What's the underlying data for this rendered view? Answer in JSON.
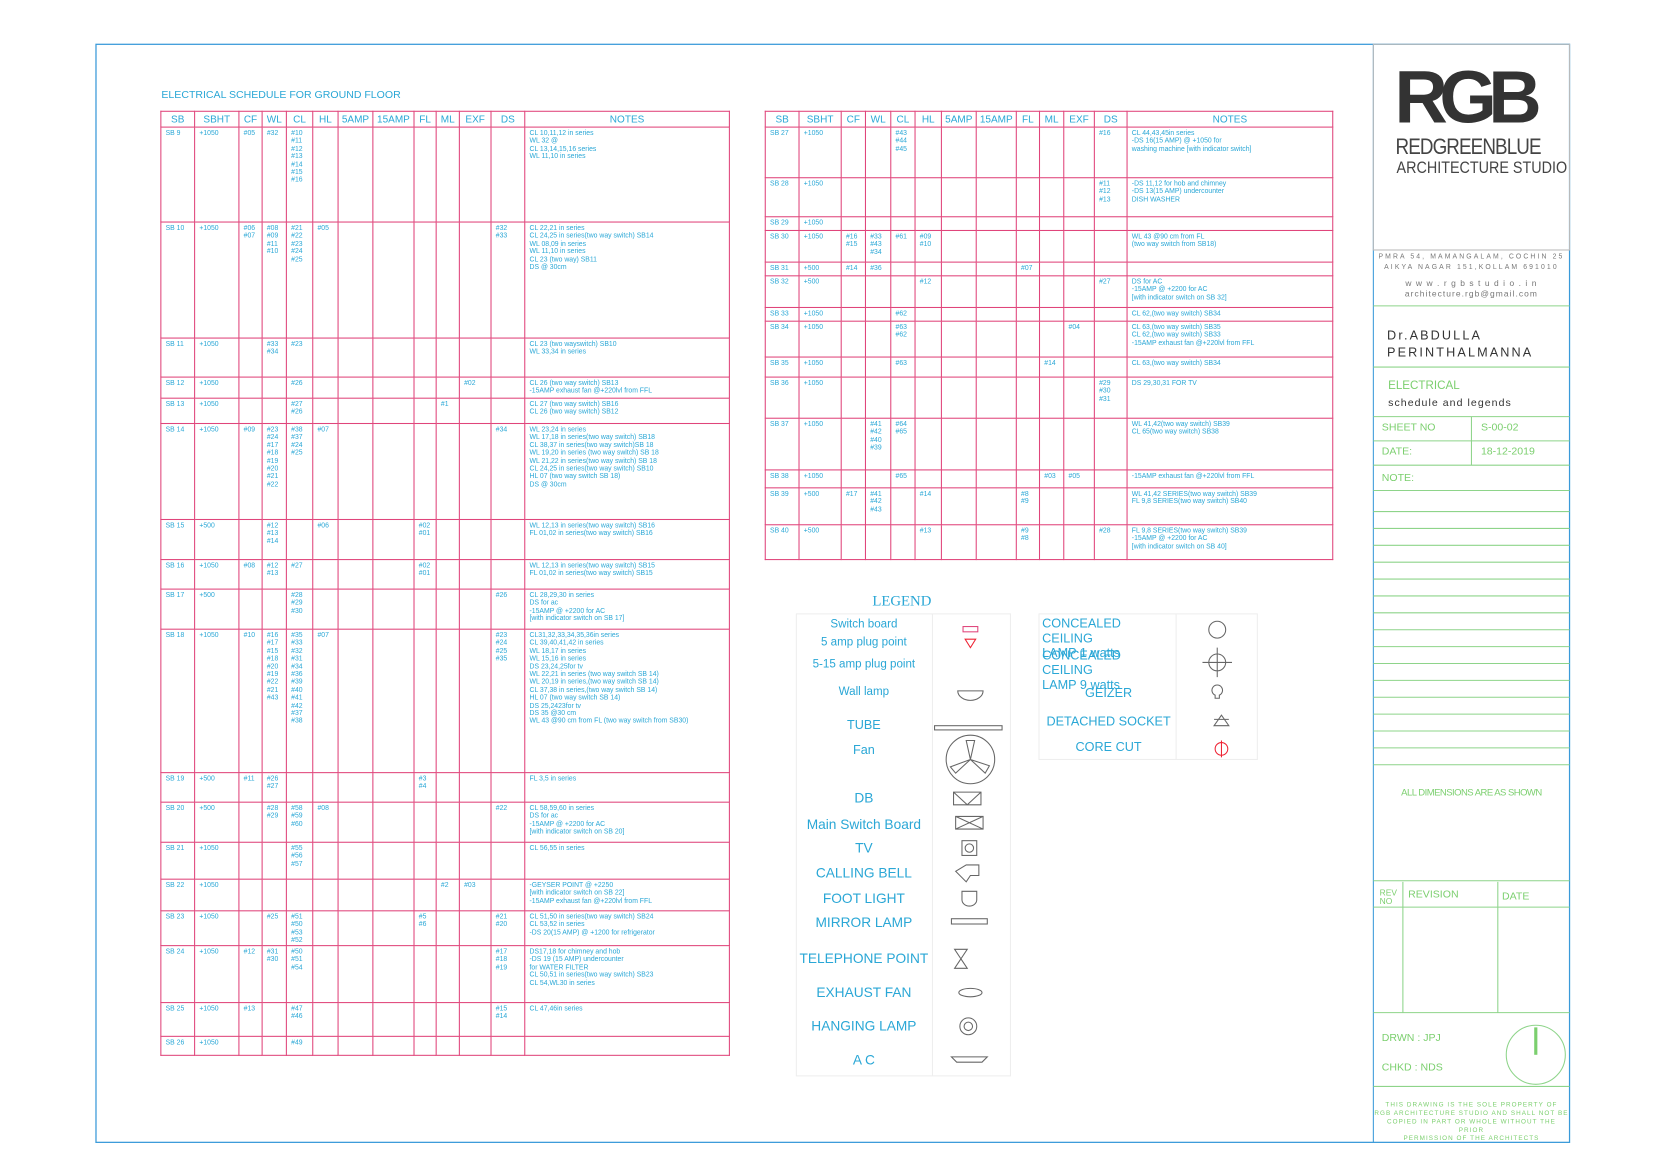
{
  "schedule_ground": {
    "title": "ELECTRICAL SCHEDULE FOR GROUND FLOOR",
    "columns": [
      "SB",
      "SBHT",
      "CF",
      "WL",
      "CL",
      "HL",
      "5AMP",
      "15AMP",
      "FL",
      "ML",
      "EXF",
      "DS",
      "NOTES"
    ],
    "rows": [
      [
        "SB 9",
        "+1050",
        "#05",
        "#32",
        "#10\n#11\n#12\n#13\n#14\n#15\n#16",
        null,
        null,
        null,
        null,
        null,
        null,
        null,
        "CL 10,11,12 in series\nWL 32 @\nCL 13,14,15,16 series\nWL 11,10 in series"
      ],
      [
        "SB 10",
        "+1050",
        "#06\n#07",
        "#08\n#09\n#11\n#10",
        "#21\n#22\n#23\n#24\n#25",
        "#05",
        null,
        null,
        null,
        null,
        null,
        "#32\n#33",
        "CL 22,21 in series\nCL 24,25 in series(two way switch) SB14\nWL 08,09 in series\nWL 11,10 in series\nCL 23 (two way) SB11\nDS @ 30cm"
      ],
      [
        "SB 11",
        "+1050",
        null,
        "#33\n#34",
        "#23",
        null,
        null,
        null,
        null,
        null,
        null,
        null,
        "CL 23 (two wayswitch) SB10\nWL 33,34 in series"
      ],
      [
        "SB 12",
        "+1050",
        null,
        null,
        "#26",
        null,
        null,
        null,
        null,
        null,
        "#02",
        null,
        "CL 26 (two way switch) SB13\n-15AMP exhaust fan @+220lvl from FFL"
      ],
      [
        "SB 13",
        "+1050",
        null,
        null,
        "#27\n#26",
        null,
        null,
        null,
        null,
        "#1",
        null,
        null,
        "CL 27 (two way switch) SB16\nCL 26 (two way switch) SB12"
      ],
      [
        "SB 14",
        "+1050",
        "#09",
        "#23\n#24\n#17\n#18\n#19\n#20\n#21\n#22",
        "#38\n#37\n#24\n#25",
        "#07",
        null,
        null,
        null,
        null,
        null,
        "#34",
        "WL 23,24 in series\nWL 17,18 in series(two way switch) SB18\nCL 38,37 in series(two way switch)SB 18\nWL 19,20 in series (two way switch) SB 18\nWL 21,22 in series(two way switch) SB 18\nCL 24,25 in series(two way switch) SB10\nHL 07 (two way switch SB 18)\nDS @ 30cm"
      ],
      [
        "SB 15",
        "+500",
        null,
        "#12\n#13\n#14",
        null,
        "#06",
        null,
        null,
        "#02\n#01",
        null,
        null,
        null,
        "WL 12,13 in series(two way switch) SB16\nFL 01,02 in series(two way switch) SB16"
      ],
      [
        "SB 16",
        "+1050",
        "#08",
        "#12\n#13",
        "#27",
        null,
        null,
        null,
        "#02\n#01",
        null,
        null,
        null,
        "WL 12,13 in series(two way switch) SB15\nFL 01,02 in series(two way switch) SB15"
      ],
      [
        "SB 17",
        "+500",
        null,
        null,
        "#28\n#29\n#30",
        null,
        null,
        null,
        null,
        null,
        null,
        "#26",
        "CL 28,29,30 in series\nDS for ac\n-15AMP @ +2200 for AC\n[with indicator switch on SB 17]"
      ],
      [
        "SB 18",
        "+1050",
        "#10",
        "#16\n#17\n#15\n#18\n#20\n#19\n#22\n#21\n#43",
        "#35\n#33\n#32\n#31\n#34\n#36\n#39\n#40\n#41\n#42\n#37\n#38",
        "#07",
        null,
        null,
        null,
        null,
        null,
        "#23\n#24\n#25\n#35",
        "CL31,32,33,34,35,36in series\nCL 39,40,41,42 in series\nWL 18,17 in series\nWL 15,16 in series\nDS 23,24,25for tv\nWL 22,21 in series (two way switch SB 14)\nWL 20,19 in series,(two way switch SB 14)\nCL 37,38 in series,(two way switch SB 14)\nHL 07 (two way switch SB 14)\nDS 25,2423for tv\nDS 35 @30 cm\nWL 43 @90 cm from FL (two way switch from SB30)"
      ],
      [
        "SB 19",
        "+500",
        "#11",
        "#26\n#27",
        null,
        null,
        null,
        null,
        "#3\n#4",
        null,
        null,
        null,
        "FL 3,5 in series"
      ],
      [
        "SB 20",
        "+500",
        null,
        "#28\n#29",
        "#58\n#59\n#60",
        "#08",
        null,
        null,
        null,
        null,
        null,
        "#22",
        "CL 58,59,60 in series\nDS for ac\n-15AMP @ +2200 for AC\n[with indicator switch on SB 20]"
      ],
      [
        "SB 21",
        "+1050",
        null,
        null,
        "#55\n#56\n#57",
        null,
        null,
        null,
        null,
        null,
        null,
        null,
        "CL 56,55 in series"
      ],
      [
        "SB 22",
        "+1050",
        null,
        null,
        null,
        null,
        null,
        null,
        null,
        "#2",
        "#03",
        null,
        "-GEYSER POINT @ +2250\n[with indicator switch on SB 22]\n-15AMP exhaust fan @+220lvl from FFL"
      ],
      [
        "SB 23",
        "+1050",
        null,
        "#25",
        "#51\n#50\n#53\n#52",
        null,
        null,
        null,
        "#5\n#6",
        null,
        null,
        "#21\n#20",
        "CL 51,50 in series(two way switch) SB24\nCL 53,52 in series\n-DS 20(15 AMP) @ +1200 for refrigerator"
      ],
      [
        "SB 24",
        "+1050",
        "#12",
        "#31\n#30",
        "#50\n#51\n#54",
        null,
        null,
        null,
        null,
        null,
        null,
        "#17\n#18\n#19",
        "DS17,18 for chimney and hob\n-DS 19 (15 AMP) undercounter\nfor WATER FILTER\nCL 50,51 in series(two way switch) SB23\nCL 54,WL30 in series"
      ],
      [
        "SB 25",
        "+1050",
        "#13",
        null,
        "#47\n#46",
        null,
        null,
        null,
        null,
        null,
        null,
        "#15\n#14",
        "CL 47,46in series"
      ],
      [
        "SB 26",
        "+1050",
        null,
        null,
        "#49",
        null,
        null,
        null,
        null,
        null,
        null,
        null,
        null
      ]
    ]
  },
  "schedule_first": {
    "columns": [
      "SB",
      "SBHT",
      "CF",
      "WL",
      "CL",
      "HL",
      "5AMP",
      "15AMP",
      "FL",
      "ML",
      "EXF",
      "DS",
      "NOTES"
    ],
    "rows": [
      [
        "SB 27",
        "+1050",
        null,
        null,
        "#43\n#44\n#45",
        null,
        null,
        null,
        null,
        null,
        null,
        "#16",
        "CL 44,43,45in series\n-DS 16(15 AMP) @ +1050 for\nwashing machine [with indicator switch]"
      ],
      [
        "SB 28",
        "+1050",
        null,
        null,
        null,
        null,
        null,
        null,
        null,
        null,
        null,
        "#11\n#12\n#13",
        "-DS 11,12 for hob and chimney\n-DS 13(15 AMP) undercounter\nDISH WASHER"
      ],
      [
        "SB 29",
        "+1050",
        null,
        null,
        null,
        null,
        null,
        null,
        null,
        null,
        null,
        null,
        null
      ],
      [
        "SB 30",
        "+1050",
        "#16\n#15",
        "#33\n#43\n#34",
        "#61",
        "#09\n#10",
        null,
        null,
        null,
        null,
        null,
        null,
        "WL 43 @90 cm from FL\n(two way switch from SB18)"
      ],
      [
        "SB 31",
        "+500",
        "#14",
        "#36",
        null,
        null,
        null,
        null,
        "#07",
        null,
        null,
        null,
        null
      ],
      [
        "SB 32",
        "+500",
        null,
        null,
        null,
        "#12",
        null,
        null,
        null,
        null,
        null,
        "#27",
        "DS for AC\n-15AMP @ +2200 for AC\n[with indicator switch on SB 32]"
      ],
      [
        "SB 33",
        "+1050",
        null,
        null,
        "#62",
        null,
        null,
        null,
        null,
        null,
        null,
        null,
        "CL 62,(two way switch) SB34"
      ],
      [
        "SB 34",
        "+1050",
        null,
        null,
        "#63\n#62",
        null,
        null,
        null,
        null,
        null,
        "#04",
        null,
        "CL 63,(two way switch) SB35\nCL 62,(two way switch) SB33\n-15AMP exhaust fan @+220lvl from FFL"
      ],
      [
        "SB 35",
        "+1050",
        null,
        null,
        "#63",
        null,
        null,
        null,
        null,
        "#14",
        null,
        null,
        "CL 63,(two way switch) SB34"
      ],
      [
        "SB 36",
        "+1050",
        null,
        null,
        null,
        null,
        null,
        null,
        null,
        null,
        null,
        "#29\n#30\n#31",
        "DS 29,30,31 FOR TV"
      ],
      [
        "SB 37",
        "+1050",
        null,
        "#41\n#42\n#40\n#39",
        "#64\n#65",
        null,
        null,
        null,
        null,
        null,
        null,
        null,
        "WL 41,42(two way switch) SB39\nCL 65(two way switch) SB38"
      ],
      [
        "SB 38",
        "+1050",
        null,
        null,
        "#65",
        null,
        null,
        null,
        null,
        "#03",
        "#05",
        null,
        "-15AMP exhaust fan @+220lvl from FFL"
      ],
      [
        "SB 39",
        "+500",
        "#17",
        "#41\n#42\n#43",
        null,
        "#14",
        null,
        null,
        "#8\n#9",
        null,
        null,
        null,
        "WL 41,42 SERIES(two way switch) SB39\nFL 9,8 SERIES(two way switch) SB40"
      ],
      [
        "SB 40",
        "+500",
        null,
        null,
        null,
        "#13",
        null,
        null,
        "#9\n#8",
        null,
        null,
        "#28",
        "FL 9,8 SERIES(two way switch) SB39\n-15AMP @ +2200 for AC\n[with indicator switch on SB 40]"
      ]
    ]
  },
  "legend": {
    "title": "LEGEND",
    "items": [
      "Switch board",
      "5 amp plug point",
      "5-15 amp plug point",
      "Wall lamp",
      "TUBE",
      "Fan",
      "DB",
      "Main Switch Board",
      "TV",
      "CALLING BELL",
      "FOOT LIGHT",
      "MIRROR LAMP",
      "TELEPHONE POINT",
      "EXHAUST FAN",
      "HANGING LAMP",
      "A C"
    ],
    "right_items": [
      "CONCEALED CEILING\nLAMP  1 watts",
      "CONCEALED CEILING\nLAMP  9 watts",
      "GEIZER",
      "DETACHED SOCKET",
      "CORE CUT"
    ]
  },
  "title_block": {
    "logo": "RGB",
    "studio_name": "REDGREENBLUE",
    "studio_sub": "ARCHITECTURE STUDIO",
    "address": [
      "PMRA 54, MAMANGALAM, COCHIN 25",
      "AIKYA NAGAR 151,KOLLAM 691010",
      "w w w . r g b s t u d i o . i n",
      "architecture.rgb@gmail.com"
    ],
    "client": [
      "Dr.ABDULLA",
      "PERINTHALMANNA"
    ],
    "drawing": "ELECTRICAL",
    "drawing_sub": "schedule and legends",
    "sheet_label": "SHEET NO",
    "sheet_value": "S-00-02",
    "date_label": "DATE:",
    "date_value": "18-12-2019",
    "note_label": "NOTE:",
    "dimensions_note": "ALL DIMENSIONS ARE AS SHOWN",
    "revision_headers": [
      "REV\nNO",
      "REVISION",
      "DATE"
    ],
    "drawn": "DRWN :  JPJ",
    "checked": "CHKD :  NDS",
    "footer": "THIS DRAWING IS THE SOLE PROPERTY OF\nRGB ARCHITECTURE STUDIO AND SHALL NOT BE\nCOPIED IN PART OR WHOLE WITHOUT THE PRIOR\nPERMISSION OF THE ARCHITECTS"
  }
}
